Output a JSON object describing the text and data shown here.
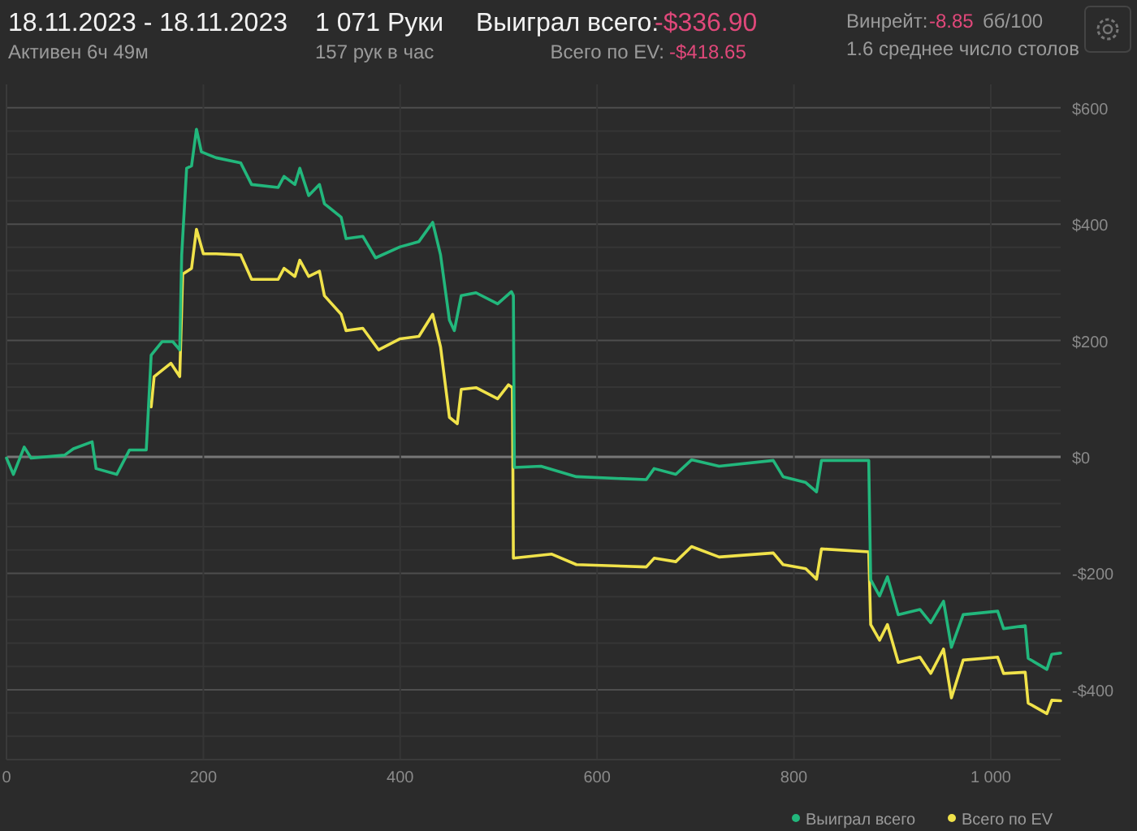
{
  "chart_data": {
    "type": "line",
    "annotations": [
      "18.11.2023 - 18.11.2023",
      "Активен 6ч 49м",
      "1 071 Руки",
      "157 рук в час",
      "Выиграл всего:",
      "-$336.90",
      "Всего по EV:",
      "-$418.65",
      "Винрейт:",
      "-8.85",
      "бб/100",
      "1.6 среднее число столов"
    ],
    "xlim": [
      0,
      1071
    ],
    "ylim": [
      -520,
      640
    ],
    "xticks": [
      0,
      200,
      400,
      600,
      800,
      {
        "value": 1000,
        "label": "1 000"
      }
    ],
    "yticks": [
      {
        "value": -480,
        "label": null
      },
      {
        "value": -440,
        "label": null
      },
      {
        "value": -400,
        "label": "-$400"
      },
      {
        "value": -360,
        "label": null
      },
      {
        "value": -320,
        "label": null
      },
      {
        "value": -280,
        "label": null
      },
      {
        "value": -240,
        "label": null
      },
      {
        "value": -200,
        "label": "-$200"
      },
      {
        "value": -160,
        "label": null
      },
      {
        "value": -120,
        "label": null
      },
      {
        "value": -80,
        "label": null
      },
      {
        "value": -40,
        "label": null
      },
      {
        "value": 0,
        "label": "$0"
      },
      {
        "value": 40,
        "label": null
      },
      {
        "value": 80,
        "label": null
      },
      {
        "value": 120,
        "label": null
      },
      {
        "value": 160,
        "label": null
      },
      {
        "value": 200,
        "label": "$200"
      },
      {
        "value": 240,
        "label": null
      },
      {
        "value": 280,
        "label": null
      },
      {
        "value": 320,
        "label": null
      },
      {
        "value": 360,
        "label": null
      },
      {
        "value": 400,
        "label": "$400"
      },
      {
        "value": 440,
        "label": null
      },
      {
        "value": 480,
        "label": null
      },
      {
        "value": 520,
        "label": null
      },
      {
        "value": 560,
        "label": null
      },
      {
        "value": 600,
        "label": "$600"
      }
    ],
    "grid": true,
    "legend": "bottom right",
    "series": [
      {
        "name": "Выиграл всего",
        "color": "#22b77c",
        "x": [
          0,
          7,
          18,
          25,
          59,
          68,
          87,
          91,
          112,
          125,
          142,
          147,
          158,
          169,
          176,
          178,
          183,
          188,
          193,
          198,
          213,
          238,
          249,
          276,
          282,
          293,
          298,
          307,
          318,
          323,
          340,
          345,
          362,
          375,
          400,
          419,
          433,
          441,
          450,
          455,
          462,
          477,
          499,
          513,
          515,
          516,
          543,
          579,
          650,
          658,
          680,
          696,
          724,
          779,
          789,
          812,
          823,
          828,
          876,
          878,
          887,
          895,
          906,
          928,
          939,
          952,
          960,
          972,
          1007,
          1013,
          1035,
          1038,
          1057,
          1062,
          1071
        ],
        "values": [
          -2,
          -30,
          17,
          -2,
          3,
          14,
          26,
          -20,
          -30,
          12,
          12,
          175,
          198,
          198,
          184,
          347,
          496,
          500,
          563,
          524,
          514,
          505,
          468,
          463,
          482,
          468,
          496,
          449,
          468,
          435,
          412,
          375,
          379,
          342,
          361,
          370,
          403,
          347,
          235,
          217,
          277,
          282,
          263,
          284,
          277,
          -18,
          -16,
          -34,
          -39,
          -20,
          -30,
          -5,
          -16,
          -6,
          -34,
          -44,
          -60,
          -6,
          -6,
          -211,
          -239,
          -206,
          -271,
          -262,
          -285,
          -248,
          -327,
          -271,
          -265,
          -295,
          -290,
          -346,
          -365,
          -339,
          -337
        ]
      },
      {
        "name": "Всего по EV",
        "color": "#f0e24a",
        "x": [
          147,
          150,
          167,
          176,
          179,
          188,
          193,
          200,
          213,
          238,
          249,
          276,
          282,
          293,
          298,
          307,
          318,
          323,
          340,
          345,
          362,
          378,
          400,
          419,
          433,
          441,
          450,
          458,
          462,
          477,
          499,
          510,
          514,
          515,
          554,
          579,
          650,
          658,
          680,
          696,
          724,
          779,
          789,
          812,
          823,
          828,
          876,
          878,
          887,
          895,
          906,
          928,
          939,
          952,
          960,
          972,
          1007,
          1013,
          1035,
          1038,
          1057,
          1062,
          1071
        ],
        "values": [
          86,
          138,
          161,
          138,
          314,
          324,
          391,
          349,
          349,
          347,
          305,
          305,
          324,
          310,
          338,
          310,
          319,
          277,
          245,
          217,
          221,
          184,
          203,
          207,
          245,
          189,
          68,
          57,
          116,
          119,
          100,
          124,
          119,
          -174,
          -167,
          -185,
          -189,
          -174,
          -180,
          -154,
          -172,
          -165,
          -185,
          -192,
          -210,
          -158,
          -163,
          -288,
          -315,
          -288,
          -353,
          -344,
          -372,
          -330,
          -414,
          -349,
          -344,
          -372,
          -370,
          -423,
          -441,
          -418,
          -419
        ]
      }
    ]
  }
}
